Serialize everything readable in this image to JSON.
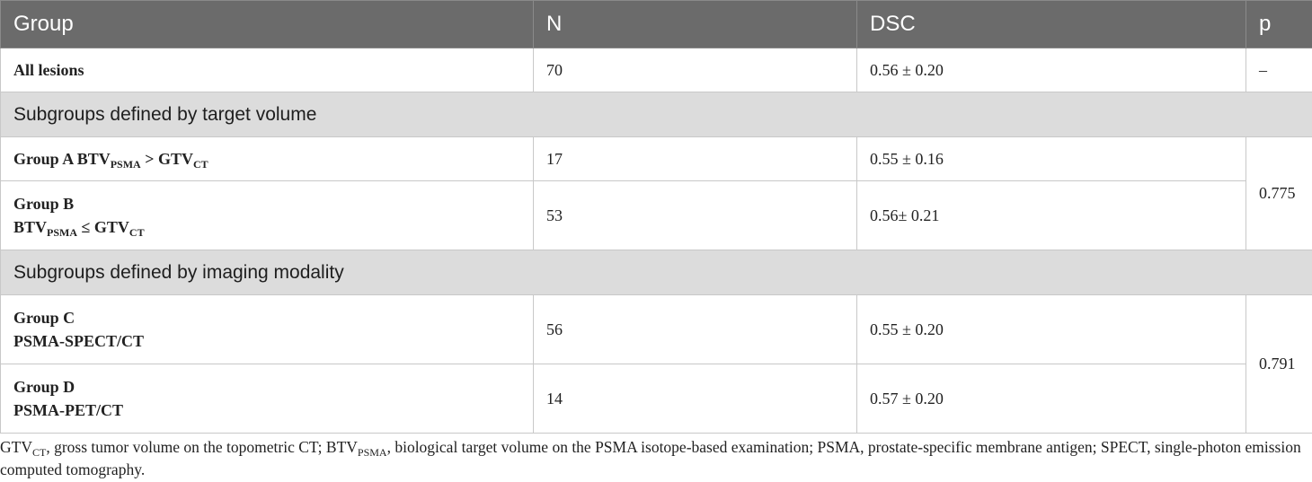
{
  "header": {
    "group": "Group",
    "n": "N",
    "dsc": "DSC",
    "p": "p"
  },
  "rows": {
    "all": {
      "group": "All lesions",
      "n": "70",
      "dsc": "0.56 ± 0.20",
      "p": "–"
    },
    "section1": "Subgroups defined by target volume",
    "groupA": {
      "name": "Group A",
      "btv": "BTV",
      "btv_sub": "PSMA",
      "op": ">",
      "gtv": "GTV",
      "gtv_sub": "CT",
      "n": "17",
      "dsc": "0.55 ± 0.16"
    },
    "groupB": {
      "name": "Group B",
      "btv": "BTV",
      "btv_sub": "PSMA",
      "op": "≤",
      "gtv": "GTV",
      "gtv_sub": "CT",
      "n": "53",
      "dsc": "0.56± 0.21"
    },
    "p_ab": "0.775",
    "section2": "Subgroups defined by imaging modality",
    "groupC": {
      "name": "Group C",
      "modality": "PSMA-SPECT/CT",
      "n": "56",
      "dsc": "0.55 ± 0.20"
    },
    "groupD": {
      "name": "Group D",
      "modality": "PSMA-PET/CT",
      "n": "14",
      "dsc": "0.57 ± 0.20"
    },
    "p_cd": "0.791"
  },
  "footnote": {
    "gtv": "GTV",
    "gtv_sub": "CT",
    "gtv_def": ", gross tumor volume on the topometric CT; ",
    "btv": "BTV",
    "btv_sub": "PSMA",
    "btv_def": ", biological target volume on the PSMA isotope-based examination; PSMA, prostate-specific membrane antigen; SPECT, single-photon emission computed tomography."
  }
}
